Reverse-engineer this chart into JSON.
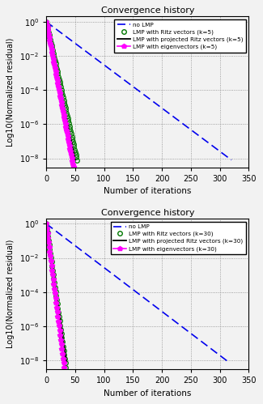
{
  "title": "Convergence history",
  "xlabel": "Number of iterations",
  "ylabel": "Log10(Normalized residual)",
  "xlim": [
    0,
    350
  ],
  "ylim1": [
    3e-09,
    2
  ],
  "ylim2": [
    3e-09,
    2
  ],
  "yticks": [
    1.0,
    0.01,
    0.0001,
    1e-06,
    1e-08
  ],
  "ytick_labels": [
    "10$^0$",
    "10$^{-2}$",
    "10$^{-4}$",
    "10$^{-6}$",
    "10$^{-8}$"
  ],
  "xticks": [
    0,
    50,
    100,
    150,
    200,
    250,
    300,
    350
  ],
  "subplot1": {
    "k": 5,
    "no_lmp_x_end": 320,
    "no_lmp_y_end": 8e-09,
    "ritz_n": 53,
    "ritz_y_end": 8e-09,
    "proj_n": 50,
    "proj_y_end": 8e-09,
    "eigen_n": 48,
    "eigen_y_end": 2e-09
  },
  "subplot2": {
    "k": 30,
    "no_lmp_x_end": 315,
    "no_lmp_y_end": 8e-09,
    "ritz_n": 38,
    "ritz_y_end": 4e-10,
    "proj_n": 35,
    "proj_y_end": 8e-09,
    "eigen_n": 32,
    "eigen_y_end": 2e-09
  },
  "colors": {
    "no_lmp": "#0000ee",
    "ritz": "#007700",
    "projected": "#000000",
    "eigen": "#ff00ff"
  },
  "bg_color": "#f2f2f2"
}
